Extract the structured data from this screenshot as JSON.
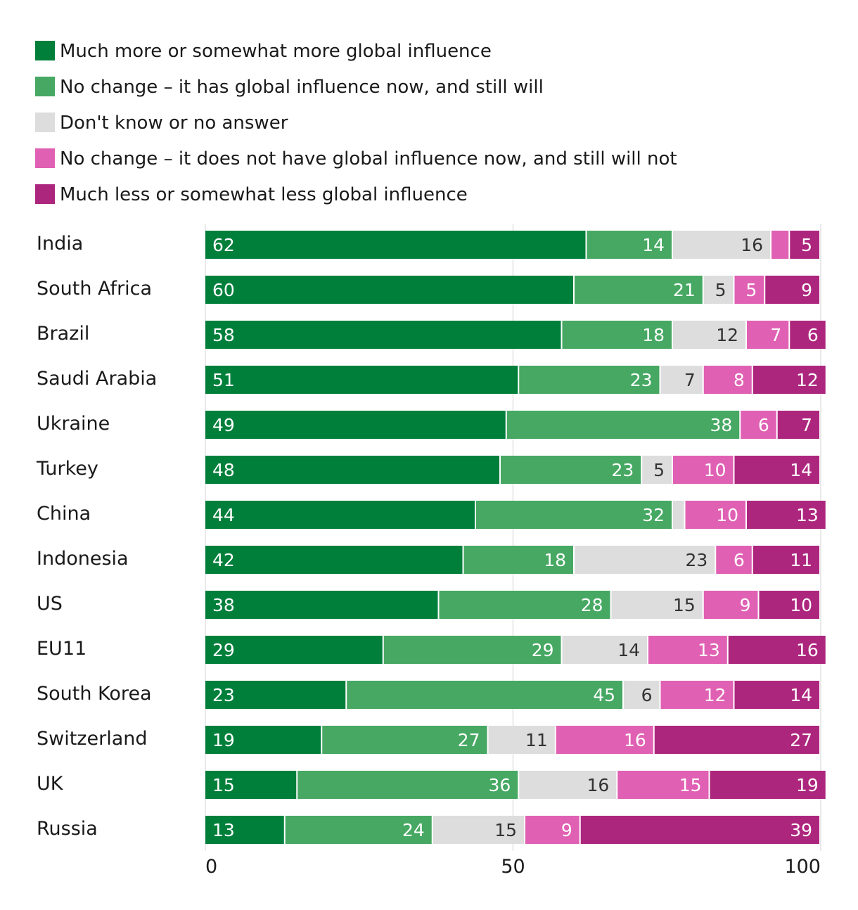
{
  "chart_data": {
    "type": "bar",
    "orientation": "horizontal",
    "stacked": true,
    "categories": [
      "India",
      "South Africa",
      "Brazil",
      "Saudi Arabia",
      "Ukraine",
      "Turkey",
      "China",
      "Indonesia",
      "US",
      "EU11",
      "South Korea",
      "Switzerland",
      "UK",
      "Russia"
    ],
    "series": [
      {
        "name": "Much more or somewhat more global influence",
        "color": "#007f3b",
        "label_color": "#ffffff",
        "values": [
          62,
          60,
          58,
          51,
          49,
          48,
          44,
          42,
          38,
          29,
          23,
          19,
          15,
          13
        ],
        "labels": [
          "62",
          "60",
          "58",
          "51",
          "49",
          "48",
          "44",
          "42",
          "38",
          "29",
          "23",
          "19",
          "15",
          "13"
        ]
      },
      {
        "name": "No change – it has global influence now, and still will",
        "color": "#46a862",
        "label_color": "#ffffff",
        "values": [
          14,
          21,
          18,
          23,
          38,
          23,
          32,
          18,
          28,
          29,
          45,
          27,
          36,
          24
        ],
        "labels": [
          "14",
          "21",
          "18",
          "23",
          "38",
          "23",
          "32",
          "18",
          "28",
          "29",
          "45",
          "27",
          "36",
          "24"
        ]
      },
      {
        "name": "Don't know or no answer",
        "color": "#dddddd",
        "label_color": "#333333",
        "values": [
          16,
          5,
          12,
          7,
          0,
          5,
          2,
          23,
          15,
          14,
          6,
          11,
          16,
          15
        ],
        "labels": [
          "16",
          "5",
          "12",
          "7",
          "",
          "5",
          "",
          "23",
          "15",
          "14",
          "6",
          "11",
          "16",
          "15"
        ]
      },
      {
        "name": "No change – it does not have global influence now, and still will not",
        "color": "#e060b4",
        "label_color": "#ffffff",
        "values": [
          3,
          5,
          7,
          8,
          6,
          10,
          10,
          6,
          9,
          13,
          12,
          16,
          15,
          9
        ],
        "labels": [
          "",
          "5",
          "7",
          "8",
          "6",
          "10",
          "10",
          "6",
          "9",
          "13",
          "12",
          "16",
          "15",
          "9"
        ]
      },
      {
        "name": "Much less or somewhat less global influence",
        "color": "#ad267e",
        "label_color": "#ffffff",
        "values": [
          5,
          9,
          6,
          12,
          7,
          14,
          13,
          11,
          10,
          16,
          14,
          27,
          19,
          39
        ],
        "labels": [
          "5",
          "9",
          "6",
          "12",
          "7",
          "14",
          "13",
          "11",
          "10",
          "16",
          "14",
          "27",
          "19",
          "39"
        ]
      }
    ],
    "xlim": [
      0,
      100
    ],
    "xticks": [
      0,
      50,
      100
    ],
    "xtick_labels": [
      "0",
      "50",
      "100"
    ],
    "grid": true,
    "legend": "top-left"
  }
}
